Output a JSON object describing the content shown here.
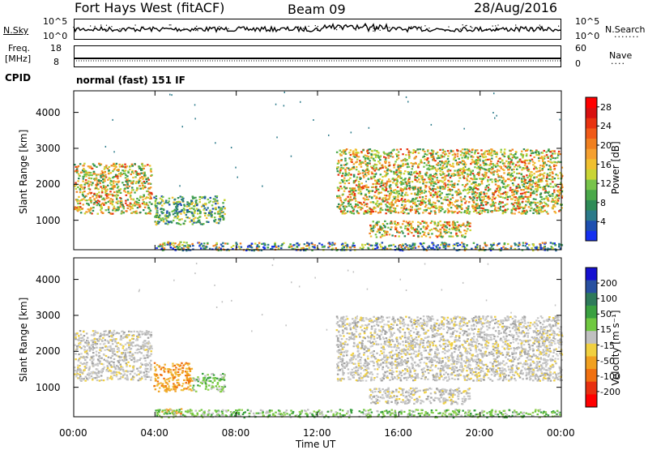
{
  "header": {
    "radar": "Fort Hays West (fitACF)",
    "beam": "Beam 09",
    "date": "28/Aug/2016"
  },
  "top_panels": {
    "nsky_label": "N.Sky",
    "nsky_ticks": [
      "10^5",
      "10^0"
    ],
    "nsearch_label": "N.Search",
    "nsearch_ticks": [
      "10^5",
      "10^0"
    ],
    "freq_label_1": "Freq.",
    "freq_label_2": "[MHz]",
    "freq_ticks": [
      "18",
      "8"
    ],
    "nave_label": "Nave",
    "nave_ticks": [
      "60",
      "0"
    ],
    "cpid_label": "CPID",
    "cpid_text": "normal (fast) 151 IF"
  },
  "chart_data": [
    {
      "type": "heatmap",
      "title": "",
      "xlabel": "",
      "ylabel": "Slant Range [km]",
      "xlim": [
        0,
        24
      ],
      "ylim": [
        180,
        4600
      ],
      "x_ticks": [
        "00:00",
        "04:00",
        "08:00",
        "12:00",
        "16:00",
        "20:00",
        "00:00"
      ],
      "y_ticks": [
        "1000",
        "2000",
        "3000",
        "4000"
      ],
      "y_tick_values": [
        1000,
        2000,
        3000,
        4000
      ],
      "colorbar": {
        "label": "Power [dB]",
        "ticks": [
          "4",
          "8",
          "12",
          "16",
          "20",
          "24",
          "28"
        ],
        "range": [
          0,
          30
        ],
        "colors": [
          "#1530f0",
          "#1d4fb0",
          "#2b7a8a",
          "#2e8b57",
          "#4aa84a",
          "#78c44a",
          "#c9d535",
          "#f0c030",
          "#f5a030",
          "#f08020",
          "#f05a18",
          "#e83210",
          "#d81010",
          "#ff0000"
        ]
      },
      "regions": [
        {
          "t0": 0.0,
          "t1": 3.8,
          "r0": 1200,
          "r1": 2600,
          "level": "high"
        },
        {
          "t0": 3.9,
          "t1": 7.4,
          "r0": 900,
          "r1": 1700,
          "level": "mixed"
        },
        {
          "t0": 4.3,
          "t1": 5.6,
          "r0": 280,
          "r1": 420,
          "level": "mid"
        },
        {
          "t0": 4.0,
          "t1": 13.8,
          "r0": 180,
          "r1": 400,
          "level": "low"
        },
        {
          "t0": 12.9,
          "t1": 24.0,
          "r0": 1200,
          "r1": 3000,
          "level": "high"
        },
        {
          "t0": 14.5,
          "t1": 19.5,
          "r0": 550,
          "r1": 1000,
          "level": "high"
        },
        {
          "t0": 14.0,
          "t1": 24.0,
          "r0": 180,
          "r1": 400,
          "level": "low"
        }
      ]
    },
    {
      "type": "heatmap",
      "title": "",
      "xlabel": "Time UT",
      "ylabel": "Slant Range [km]",
      "xlim": [
        0,
        24
      ],
      "ylim": [
        180,
        4600
      ],
      "x_ticks": [
        "00:00",
        "04:00",
        "08:00",
        "12:00",
        "16:00",
        "20:00",
        "00:00"
      ],
      "y_ticks": [
        "1000",
        "2000",
        "3000",
        "4000"
      ],
      "y_tick_values": [
        1000,
        2000,
        3000,
        4000
      ],
      "colorbar": {
        "label": "Velocity [m s⁻¹]",
        "ticks": [
          "200",
          "100",
          "50",
          "15",
          "-15",
          "-50",
          "-100",
          "-200"
        ],
        "colors": [
          "#1510d0",
          "#2850a0",
          "#2e7a5a",
          "#3aa040",
          "#70c840",
          "#c0c0c0",
          "#f0d040",
          "#f0a020",
          "#f07010",
          "#e83010",
          "#ff0000"
        ]
      },
      "regions": [
        {
          "t0": 0.0,
          "t1": 3.8,
          "r0": 1200,
          "r1": 2600,
          "level": "gray"
        },
        {
          "t0": 3.9,
          "t1": 5.8,
          "r0": 900,
          "r1": 1700,
          "level": "orange"
        },
        {
          "t0": 5.8,
          "t1": 7.4,
          "r0": 900,
          "r1": 1400,
          "level": "green"
        },
        {
          "t0": 4.3,
          "t1": 5.6,
          "r0": 280,
          "r1": 420,
          "level": "orange"
        },
        {
          "t0": 4.0,
          "t1": 13.8,
          "r0": 180,
          "r1": 400,
          "level": "green"
        },
        {
          "t0": 12.9,
          "t1": 24.0,
          "r0": 1200,
          "r1": 3000,
          "level": "gray"
        },
        {
          "t0": 14.5,
          "t1": 19.5,
          "r0": 550,
          "r1": 1000,
          "level": "gray"
        },
        {
          "t0": 14.0,
          "t1": 24.0,
          "r0": 180,
          "r1": 400,
          "level": "green"
        }
      ]
    }
  ]
}
